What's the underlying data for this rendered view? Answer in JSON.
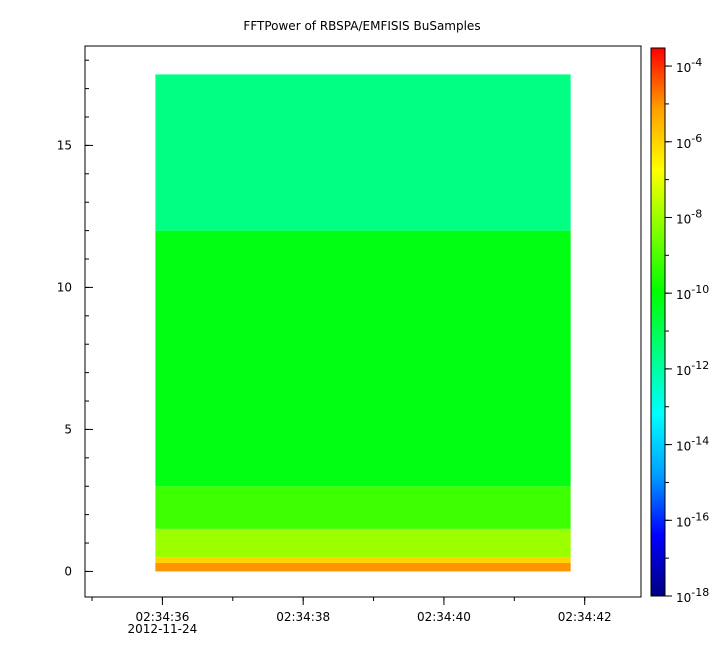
{
  "chart_data": {
    "type": "heatmap",
    "title": "FFTPower of RBSPA/EMFISIS  BuSamples",
    "x": {
      "ticks": [
        {
          "value": "02:34:36",
          "label": "02:34:36",
          "sublabel": "2012-11-24"
        },
        {
          "value": "02:34:38",
          "label": "02:34:38"
        },
        {
          "value": "02:34:40",
          "label": "02:34:40"
        },
        {
          "value": "02:34:42",
          "label": "02:34:42"
        }
      ],
      "range": [
        "02:34:34.9",
        "02:34:42.8"
      ],
      "data_range": [
        "02:34:35.9",
        "02:34:41.8"
      ]
    },
    "y": {
      "ticks": [
        0,
        5,
        10,
        15
      ],
      "range": [
        -0.9,
        18.5
      ],
      "data_range": [
        0,
        17.5
      ]
    },
    "colorbar": {
      "scale": "log",
      "range": [
        1e-18,
        0.0003
      ],
      "ticks": [
        {
          "base": "10",
          "exp": "-4",
          "value": 0.0001
        },
        {
          "base": "10",
          "exp": "-6",
          "value": 1e-06
        },
        {
          "base": "10",
          "exp": "-8",
          "value": 1e-08
        },
        {
          "base": "10",
          "exp": "-10",
          "value": 1e-10
        },
        {
          "base": "10",
          "exp": "-12",
          "value": 1e-12
        },
        {
          "base": "10",
          "exp": "-14",
          "value": 1e-14
        },
        {
          "base": "10",
          "exp": "-16",
          "value": 1e-16
        },
        {
          "base": "10",
          "exp": "-18",
          "value": 1e-18
        }
      ],
      "colormap": [
        "#000080",
        "#0000ff",
        "#00a0ff",
        "#00ffff",
        "#00ff80",
        "#00ff00",
        "#80ff00",
        "#ffff00",
        "#ffa000",
        "#ff0000"
      ]
    },
    "bands": [
      {
        "y_from": 0.0,
        "y_to": 0.3,
        "log10_power": -5.0
      },
      {
        "y_from": 0.3,
        "y_to": 0.5,
        "log10_power": -6.0
      },
      {
        "y_from": 0.5,
        "y_to": 1.5,
        "log10_power": -8.0
      },
      {
        "y_from": 1.5,
        "y_to": 3.0,
        "log10_power": -9.2
      },
      {
        "y_from": 3.0,
        "y_to": 12.0,
        "log10_power": -10.2
      },
      {
        "y_from": 12.0,
        "y_to": 17.5,
        "log10_power": -11.6
      }
    ]
  }
}
